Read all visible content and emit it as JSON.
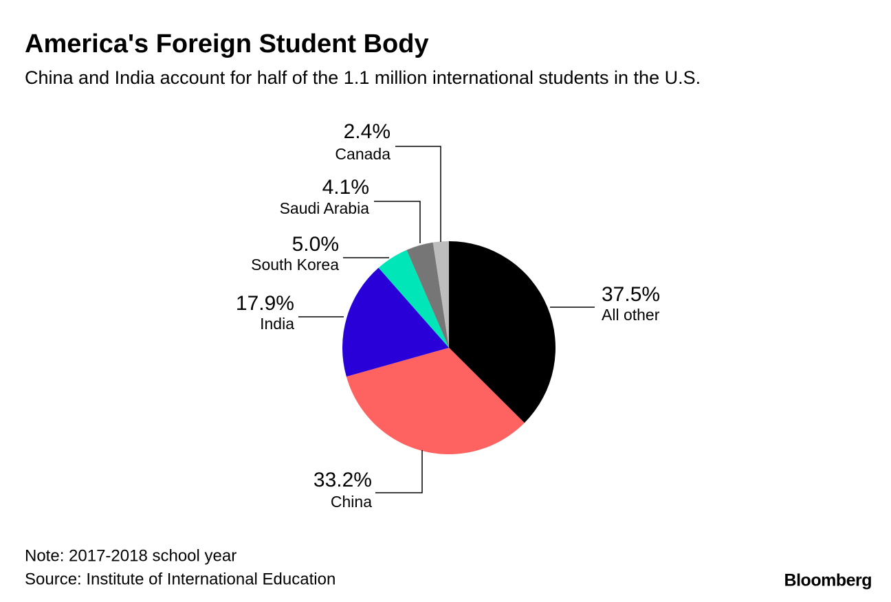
{
  "chart_data": {
    "type": "pie",
    "title": "America's Foreign Student Body",
    "subtitle": "China and India account for half of the 1.1 million international students in the U.S.",
    "categories": [
      "All other",
      "China",
      "India",
      "South Korea",
      "Saudi Arabia",
      "Canada"
    ],
    "values": [
      37.5,
      33.2,
      17.9,
      5.0,
      4.1,
      2.4
    ],
    "value_labels": [
      "37.5%",
      "33.2%",
      "17.9%",
      "5.0%",
      "4.1%",
      "2.4%"
    ],
    "colors": [
      "#000000",
      "#ff6361",
      "#2a00d8",
      "#00e6b8",
      "#767676",
      "#bdbdbd"
    ],
    "note": "Note: 2017-2018 school year",
    "source": "Source: Institute of International Education",
    "brand": "Bloomberg"
  }
}
